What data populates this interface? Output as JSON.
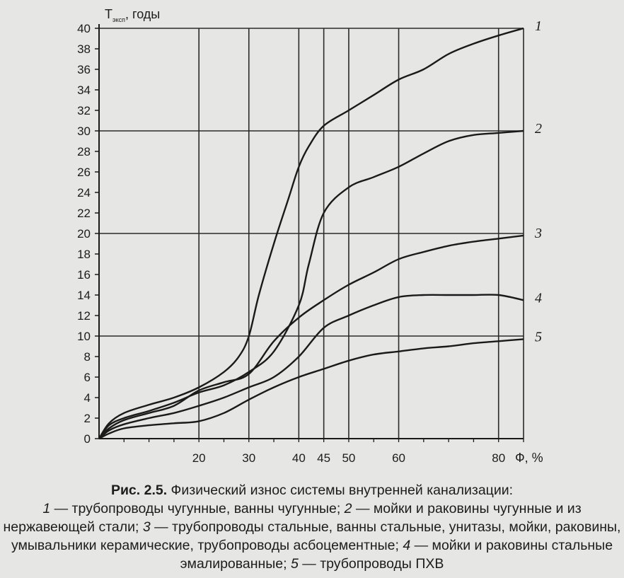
{
  "chart_data": {
    "type": "line",
    "title": "",
    "ylabel_main": "T",
    "ylabel_sub": "эксп",
    "ylabel_suffix": ", годы",
    "xlabel": "Ф, %",
    "xlim": [
      0,
      85
    ],
    "ylim": [
      0,
      40
    ],
    "y_ticks": [
      "0",
      "2",
      "4",
      "6",
      "8",
      "10",
      "12",
      "14",
      "16",
      "18",
      "20",
      "22",
      "24",
      "26",
      "28",
      "30",
      "32",
      "34",
      "36",
      "38",
      "40"
    ],
    "y_tick_values": [
      0,
      2,
      4,
      6,
      8,
      10,
      12,
      14,
      16,
      18,
      20,
      22,
      24,
      26,
      28,
      30,
      32,
      34,
      36,
      38,
      40
    ],
    "x_ticks": [
      "20",
      "30",
      "40",
      "45",
      "50",
      "60",
      "80"
    ],
    "x_tick_values": [
      20,
      30,
      40,
      45,
      50,
      60,
      80
    ],
    "grid": true,
    "series": [
      {
        "name": "1",
        "x": [
          0,
          2,
          5,
          10,
          15,
          20,
          25,
          28,
          30,
          32,
          35,
          38,
          40,
          42,
          45,
          50,
          55,
          60,
          65,
          70,
          75,
          80,
          85
        ],
        "y": [
          0,
          1.5,
          2.5,
          3.3,
          4,
          5,
          6.5,
          8,
          10,
          14,
          19,
          23.5,
          26.5,
          28.5,
          30.5,
          32,
          33.5,
          35,
          36,
          37.5,
          38.5,
          39.3,
          40
        ]
      },
      {
        "name": "2",
        "x": [
          0,
          2,
          5,
          10,
          15,
          20,
          25,
          30,
          35,
          40,
          42,
          45,
          50,
          55,
          60,
          65,
          70,
          75,
          80,
          85
        ],
        "y": [
          0,
          1.3,
          2,
          2.7,
          3.5,
          4.5,
          5.2,
          6.5,
          8.5,
          13,
          17,
          22,
          24.5,
          25.5,
          26.5,
          27.8,
          29,
          29.6,
          29.8,
          30
        ]
      },
      {
        "name": "3",
        "x": [
          0,
          2,
          5,
          10,
          15,
          20,
          25,
          30,
          35,
          40,
          45,
          50,
          55,
          60,
          65,
          70,
          75,
          80,
          85
        ],
        "y": [
          0,
          1,
          1.8,
          2.5,
          3.2,
          4.7,
          5.5,
          6.3,
          9.5,
          11.8,
          13.5,
          15,
          16.2,
          17.5,
          18.2,
          18.8,
          19.2,
          19.5,
          19.8
        ]
      },
      {
        "name": "4",
        "x": [
          0,
          2,
          5,
          10,
          15,
          20,
          25,
          30,
          35,
          40,
          45,
          50,
          55,
          60,
          65,
          70,
          75,
          80,
          85
        ],
        "y": [
          0,
          0.8,
          1.4,
          2,
          2.5,
          3.2,
          4,
          5,
          6,
          8,
          10.8,
          12,
          13,
          13.8,
          14,
          14,
          14,
          14,
          13.5
        ]
      },
      {
        "name": "5",
        "x": [
          0,
          2,
          5,
          10,
          15,
          20,
          25,
          30,
          35,
          40,
          45,
          50,
          55,
          60,
          65,
          70,
          75,
          80,
          85
        ],
        "y": [
          0,
          0.5,
          1,
          1.3,
          1.5,
          1.7,
          2.5,
          3.8,
          5,
          6,
          6.8,
          7.6,
          8.2,
          8.5,
          8.8,
          9,
          9.3,
          9.5,
          9.7
        ]
      }
    ]
  },
  "caption": {
    "lead": "Рис. 2.5.",
    "title": " Физический износ системы внутренней канализации:",
    "items": [
      {
        "num": "1",
        "text": " — трубопроводы чугунные, ванны чугунные; "
      },
      {
        "num": "2",
        "text": " — мойки и раковины чугунные и из нержавеющей стали; "
      },
      {
        "num": "3",
        "text": " — трубопроводы стальные, ванны стальные, унитазы, мойки, раковины, умывальники керамические, трубопроводы асбоцементные; "
      },
      {
        "num": "4",
        "text": " — мойки и раковины стальные эмалированные; "
      },
      {
        "num": "5",
        "text": " — трубопроводы ПХВ"
      }
    ]
  }
}
